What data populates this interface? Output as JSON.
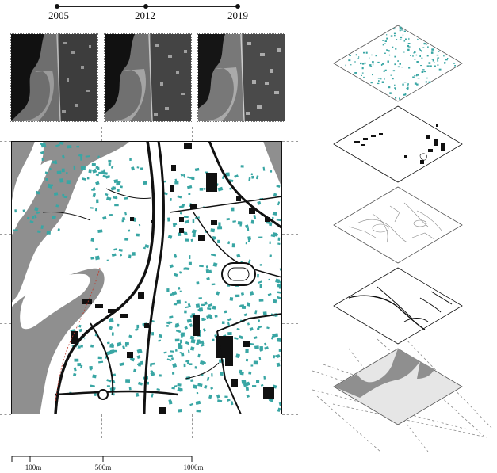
{
  "timeline": {
    "years": [
      "2005",
      "2012",
      "2019"
    ]
  },
  "satellite_images": [
    {
      "year": "2005"
    },
    {
      "year": "2012"
    },
    {
      "year": "2019"
    }
  ],
  "scale_bar": {
    "labels": [
      "100m",
      "500m",
      "1000m"
    ]
  },
  "layers": [
    {
      "name": "buildings-teal",
      "color": "#39a6a4"
    },
    {
      "name": "buildings-black",
      "color": "#111111"
    },
    {
      "name": "parcels-outline",
      "color": "#888888"
    },
    {
      "name": "roads",
      "color": "#111111"
    },
    {
      "name": "water-terrain",
      "color": "#9a9a9a"
    }
  ],
  "colors": {
    "water": "#8f8f8f",
    "building_residential": "#39a6a4",
    "building_public": "#111111",
    "road": "#111111",
    "background": "#ffffff"
  }
}
